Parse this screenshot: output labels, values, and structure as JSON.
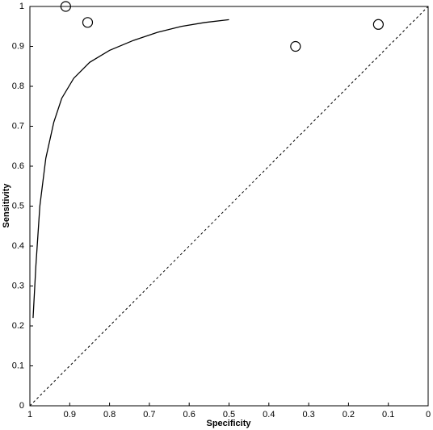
{
  "chart_data": {
    "type": "scatter",
    "xlabel": "Specificity",
    "ylabel": "Sensitivity",
    "xlim": [
      1,
      0
    ],
    "ylim": [
      0,
      1
    ],
    "xticks": [
      1,
      0.9,
      0.8,
      0.7,
      0.6,
      0.5,
      0.4,
      0.3,
      0.2,
      0.1,
      0
    ],
    "yticks": [
      0,
      0.1,
      0.2,
      0.3,
      0.4,
      0.5,
      0.6,
      0.7,
      0.8,
      0.9,
      1
    ],
    "curve": {
      "color": "#000000",
      "x": [
        0.992,
        0.985,
        0.975,
        0.96,
        0.94,
        0.92,
        0.89,
        0.85,
        0.8,
        0.74,
        0.68,
        0.62,
        0.56,
        0.5
      ],
      "values": [
        0.22,
        0.35,
        0.5,
        0.62,
        0.71,
        0.77,
        0.82,
        0.86,
        0.89,
        0.915,
        0.935,
        0.95,
        0.96,
        0.967
      ]
    },
    "points": {
      "color": "#000000",
      "x": [
        0.91,
        0.855,
        0.333,
        0.125
      ],
      "values": [
        1.0,
        0.96,
        0.9,
        0.955
      ]
    }
  }
}
